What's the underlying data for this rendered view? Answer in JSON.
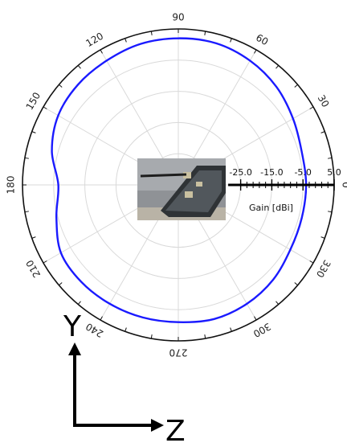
{
  "chart_data": {
    "type": "polar-line",
    "angle_ticks": [
      "0",
      "30",
      "60",
      "90",
      "120",
      "150",
      "180",
      "210",
      "240",
      "270",
      "300",
      "330"
    ],
    "radial_ticks": [
      -25.0,
      -15.0,
      -5.0,
      5.0
    ],
    "radial_tick_labels": [
      "-25.0",
      "-15.0",
      "-5.0",
      "5.0"
    ],
    "rlim": [
      -45,
      5
    ],
    "radial_axis_label": "Gain [dBi]",
    "grid": true,
    "series": [
      {
        "color": "#1a1aff",
        "theta_deg": [
          0,
          15,
          30,
          45,
          60,
          75,
          90,
          105,
          120,
          135,
          150,
          165,
          180,
          195,
          210,
          225,
          240,
          255,
          270,
          285,
          300,
          315,
          330,
          345
        ],
        "gain_dbi": [
          -4.0,
          -4.0,
          -2.5,
          -0.5,
          1.0,
          2.0,
          2.0,
          1.8,
          1.0,
          0.5,
          -0.5,
          -3.0,
          -6.5,
          -4.5,
          -1.5,
          -1.0,
          -1.0,
          -1.0,
          -1.0,
          -0.5,
          -1.0,
          -2.0,
          -3.5,
          -4.0
        ]
      }
    ]
  },
  "axes_indicator": {
    "vertical_label": "Y",
    "horizontal_label": "Z"
  },
  "inset_photo": {
    "description_icon": "antenna-photo"
  }
}
